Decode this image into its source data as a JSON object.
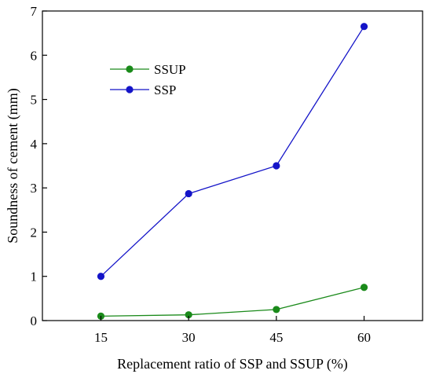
{
  "chart_data": {
    "type": "line",
    "title": "",
    "xlabel": "Replacement ratio of SSP and SSUP (%)",
    "ylabel": "Soundness of cement (mm)",
    "x": [
      15,
      30,
      45,
      60
    ],
    "x_tick_labels": [
      "15",
      "30",
      "45",
      "60"
    ],
    "xlim": [
      5,
      70
    ],
    "ylim": [
      0,
      7
    ],
    "y_ticks": [
      0,
      1,
      2,
      3,
      4,
      5,
      6,
      7
    ],
    "y_tick_labels": [
      "0",
      "1",
      "2",
      "3",
      "4",
      "5",
      "6",
      "7"
    ],
    "grid": false,
    "legend_position": "top-left",
    "series": [
      {
        "name": "SSUP",
        "color": "#1a8a1a",
        "values": [
          0.1,
          0.13,
          0.25,
          0.75
        ]
      },
      {
        "name": "SSP",
        "color": "#1414c8",
        "values": [
          1.0,
          2.87,
          3.5,
          6.65
        ]
      }
    ]
  }
}
